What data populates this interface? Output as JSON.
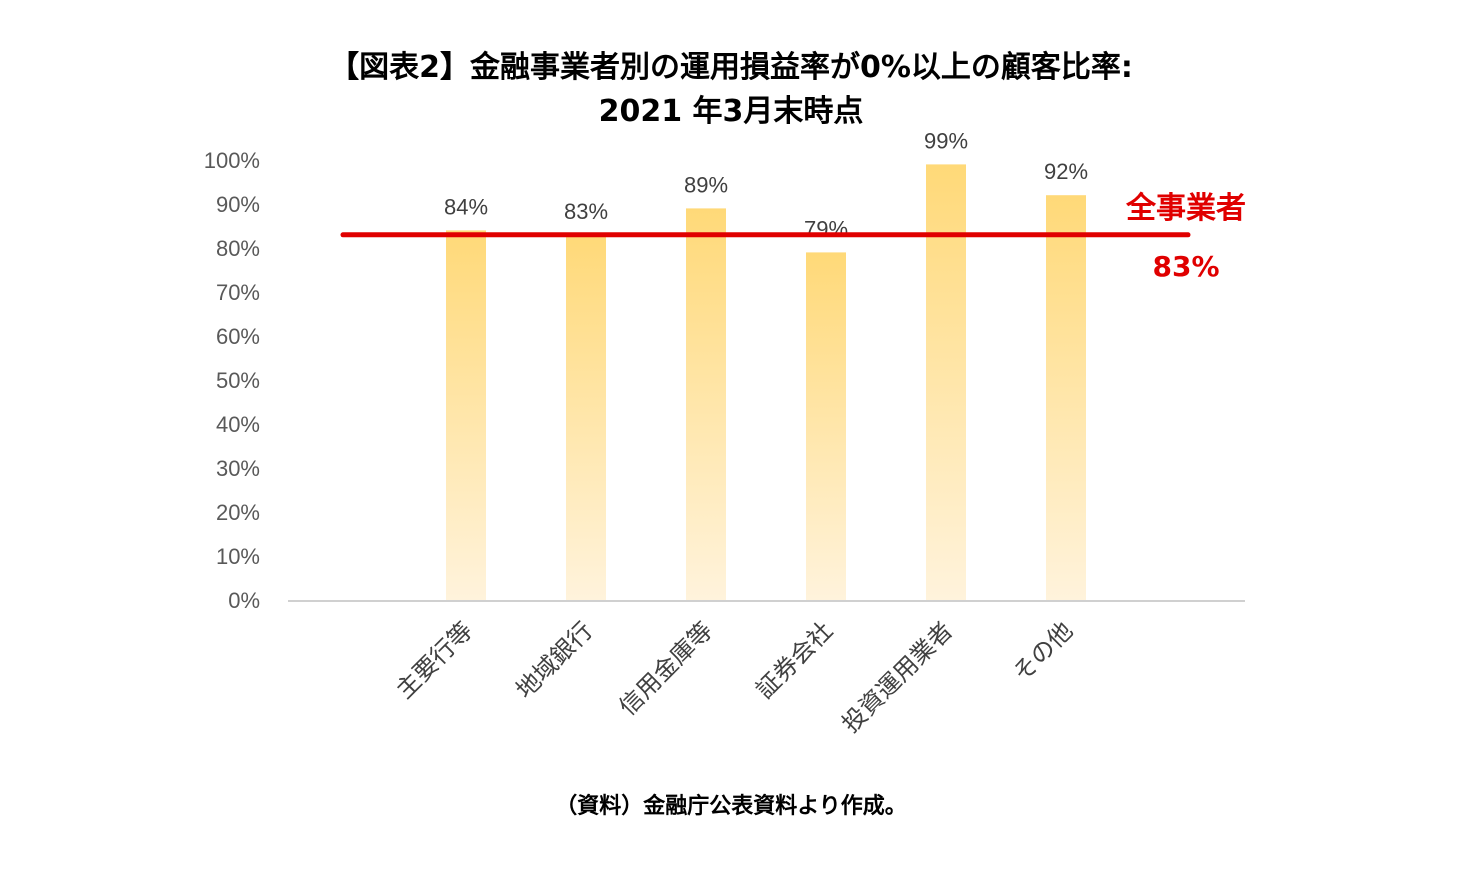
{
  "chart_data": {
    "type": "bar",
    "title": "【図表2】金融事業者別の運用損益率が0%以上の顧客比率:",
    "subtitle": "2021 年3月末時点",
    "categories": [
      "主要行等",
      "地域銀行",
      "信用金庫等",
      "証券会社",
      "投資運用業者",
      "その他"
    ],
    "values": [
      84,
      83,
      89,
      79,
      99,
      92
    ],
    "data_labels": [
      "84%",
      "83%",
      "89%",
      "79%",
      "99%",
      "92%"
    ],
    "ylim": [
      0,
      100
    ],
    "yticks": [
      0,
      10,
      20,
      30,
      40,
      50,
      60,
      70,
      80,
      90,
      100
    ],
    "ytick_labels": [
      "0%",
      "10%",
      "20%",
      "30%",
      "40%",
      "50%",
      "60%",
      "70%",
      "80%",
      "90%",
      "100%"
    ],
    "xlabel": "",
    "ylabel": "",
    "grid": false,
    "reference_line": {
      "value": 83,
      "label": "全事業者",
      "value_label": "83%",
      "color": "#e00000"
    },
    "bar_color_top": "#ffd978",
    "bar_color_bottom": "#fff3dc"
  },
  "source": "（資料）金融庁公表資料より作成。"
}
